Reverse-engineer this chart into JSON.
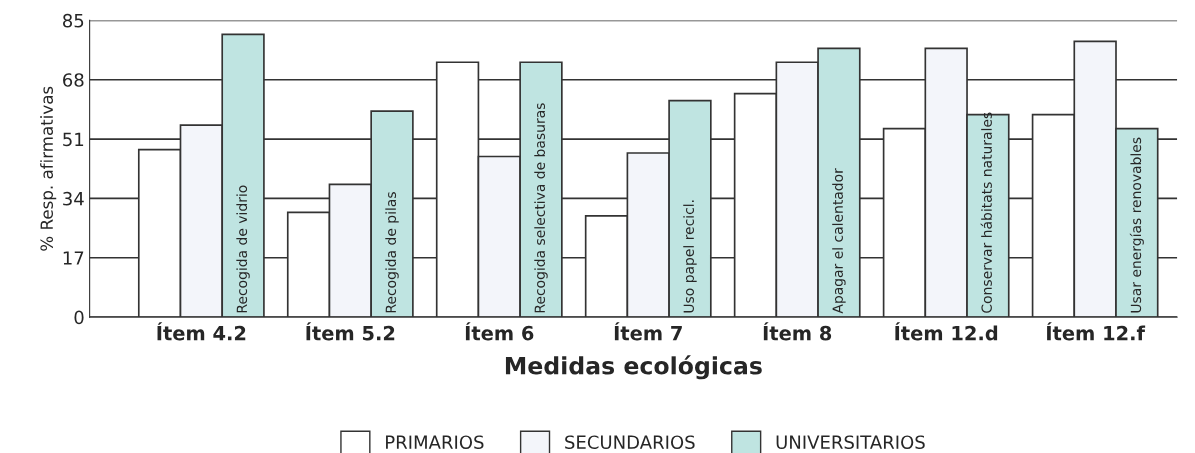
{
  "chart_data": {
    "type": "bar",
    "xlabel": "Medidas ecológicas",
    "ylabel": "% Resp. afirmativas",
    "categories": [
      "Ítem 4.2",
      "Ítem 5.2",
      "Ítem 6",
      "Ítem 7",
      "Ítem 8",
      "Ítem 12.d",
      "Ítem 12.f"
    ],
    "series": [
      {
        "name": "PRIMARIOS",
        "color": "#ffffff",
        "values": [
          48,
          30,
          73,
          29,
          64,
          54,
          58
        ]
      },
      {
        "name": "SECUNDARIOS",
        "color": "#f3f5fa",
        "values": [
          55,
          38,
          46,
          47,
          73,
          77,
          79
        ]
      },
      {
        "name": "UNIVERSITARIOS",
        "color": "#bfe4e1",
        "values": [
          81,
          59,
          73,
          62,
          77,
          58,
          54
        ]
      }
    ],
    "annotations": [
      {
        "text": "Recogida de vidrio",
        "x": "Ítem 4.2",
        "y": 0
      },
      {
        "text": "Recogida de pilas",
        "x": "Ítem 5.2",
        "y": 0
      },
      {
        "text": "Recogida selectiva de basuras",
        "x": "Ítem 6",
        "y": 0
      },
      {
        "text": "Uso papel recicl.",
        "x": "Ítem 7",
        "y": 0
      },
      {
        "text": "Apagar el calentador",
        "x": "Ítem 8",
        "y": 0
      },
      {
        "text": "Conservar hábitats naturales",
        "x": "Ítem 12.d",
        "y": 0
      },
      {
        "text": "Usar energías renovables",
        "x": "Ítem 12.f",
        "y": 0
      }
    ],
    "ylim": [
      0,
      85
    ],
    "yticks": [
      0,
      17,
      34,
      51,
      68,
      85
    ],
    "grid": "y",
    "legend": "bottom"
  }
}
